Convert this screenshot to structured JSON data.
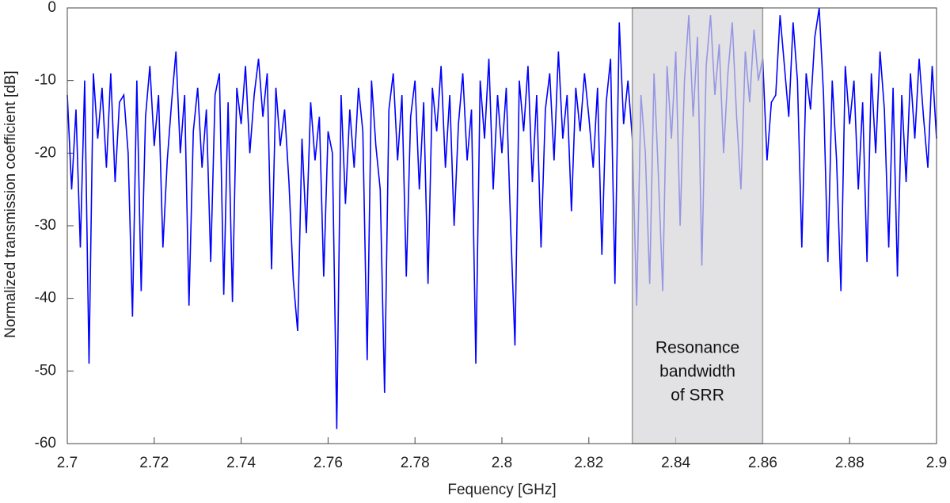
{
  "chart_data": {
    "type": "line",
    "xlabel": "Fequency [GHz]",
    "ylabel": "Normalized transmission coefficient [dB]",
    "annotation": [
      "Resonance",
      "bandwidth",
      "of SRR"
    ],
    "highlight": {
      "xmin": 2.83,
      "xmax": 2.86,
      "color": "#d6d6d9"
    },
    "xlim": [
      2.7,
      2.9
    ],
    "ylim": [
      -60,
      0
    ],
    "xticks": [
      2.7,
      2.72,
      2.74,
      2.76,
      2.78,
      2.8,
      2.82,
      2.84,
      2.86,
      2.88,
      2.9
    ],
    "yticks": [
      -60,
      -50,
      -40,
      -30,
      -20,
      -10,
      0
    ],
    "x": [
      2.7,
      2.701,
      2.702,
      2.703,
      2.704,
      2.705,
      2.706,
      2.707,
      2.708,
      2.709,
      2.71,
      2.711,
      2.712,
      2.713,
      2.714,
      2.715,
      2.716,
      2.717,
      2.718,
      2.719,
      2.72,
      2.721,
      2.722,
      2.723,
      2.724,
      2.725,
      2.726,
      2.727,
      2.728,
      2.729,
      2.73,
      2.731,
      2.732,
      2.733,
      2.734,
      2.735,
      2.736,
      2.737,
      2.738,
      2.739,
      2.74,
      2.741,
      2.742,
      2.743,
      2.744,
      2.745,
      2.746,
      2.747,
      2.748,
      2.749,
      2.75,
      2.751,
      2.752,
      2.753,
      2.754,
      2.755,
      2.756,
      2.757,
      2.758,
      2.759,
      2.76,
      2.761,
      2.762,
      2.763,
      2.764,
      2.765,
      2.766,
      2.767,
      2.768,
      2.769,
      2.77,
      2.771,
      2.772,
      2.773,
      2.774,
      2.775,
      2.776,
      2.777,
      2.778,
      2.779,
      2.78,
      2.781,
      2.782,
      2.783,
      2.784,
      2.785,
      2.786,
      2.787,
      2.788,
      2.789,
      2.79,
      2.791,
      2.792,
      2.793,
      2.794,
      2.795,
      2.796,
      2.797,
      2.798,
      2.799,
      2.8,
      2.801,
      2.802,
      2.803,
      2.804,
      2.805,
      2.806,
      2.807,
      2.808,
      2.809,
      2.81,
      2.811,
      2.812,
      2.813,
      2.814,
      2.815,
      2.816,
      2.817,
      2.818,
      2.819,
      2.82,
      2.821,
      2.822,
      2.823,
      2.824,
      2.825,
      2.826,
      2.827,
      2.828,
      2.829,
      2.83,
      2.831,
      2.832,
      2.833,
      2.834,
      2.835,
      2.836,
      2.837,
      2.838,
      2.839,
      2.84,
      2.841,
      2.842,
      2.843,
      2.844,
      2.845,
      2.846,
      2.847,
      2.848,
      2.849,
      2.85,
      2.851,
      2.852,
      2.853,
      2.854,
      2.855,
      2.856,
      2.857,
      2.858,
      2.859,
      2.86,
      2.861,
      2.862,
      2.863,
      2.864,
      2.865,
      2.866,
      2.867,
      2.868,
      2.869,
      2.87,
      2.871,
      2.872,
      2.873,
      2.874,
      2.875,
      2.876,
      2.877,
      2.878,
      2.879,
      2.88,
      2.881,
      2.882,
      2.883,
      2.884,
      2.885,
      2.886,
      2.887,
      2.888,
      2.889,
      2.89,
      2.891,
      2.892,
      2.893,
      2.894,
      2.895,
      2.896,
      2.897,
      2.898,
      2.899,
      2.9
    ],
    "series": [
      {
        "color": "#0000ff",
        "values": [
          -12,
          -25,
          -14,
          -33,
          -10,
          -49,
          -9,
          -18,
          -11,
          -22,
          -9,
          -24,
          -13,
          -12,
          -20,
          -42.5,
          -10,
          -39,
          -15,
          -8,
          -19,
          -12,
          -33,
          -21,
          -13,
          -6,
          -20,
          -12,
          -41,
          -17,
          -11,
          -22,
          -14,
          -35,
          -12,
          -9,
          -39.5,
          -13,
          -40.5,
          -11,
          -16,
          -8,
          -20,
          -12,
          -7,
          -15,
          -9,
          -36,
          -11,
          -19,
          -14,
          -24,
          -37.5,
          -44.5,
          -18,
          -31,
          -13,
          -21,
          -15,
          -37,
          -17,
          -20,
          -58,
          -12,
          -27,
          -14,
          -22,
          -11,
          -17,
          -48.5,
          -10,
          -19,
          -25,
          -53,
          -14,
          -9,
          -21,
          -12,
          -37,
          -15,
          -10,
          -25,
          -13,
          -38,
          -11,
          -17,
          -8,
          -22,
          -12,
          -30,
          -16,
          -9,
          -21,
          -14,
          -49,
          -10,
          -18,
          -7,
          -25,
          -12,
          -20,
          -11,
          -30,
          -46.5,
          -10,
          -17,
          -8,
          -24,
          -12,
          -33,
          -14,
          -9,
          -21,
          -6,
          -18,
          -12,
          -28,
          -11,
          -17,
          -9,
          -15,
          -22,
          -11,
          -34,
          -13,
          -7,
          -38,
          -2,
          -16,
          -10,
          -18,
          -41,
          -12,
          -20,
          -38,
          -9,
          -23,
          -39,
          -8,
          -18,
          -6,
          -30,
          -10,
          -1,
          -15,
          -4,
          -35.5,
          -8,
          -1,
          -12,
          -5,
          -20,
          -9,
          -2,
          -15,
          -25,
          -6,
          -13,
          -3,
          -10,
          -7,
          -21,
          -13,
          -12,
          -1,
          -8,
          -15,
          -2,
          -10,
          -33,
          -9,
          -14,
          -4,
          0,
          -12,
          -35,
          -10,
          -21,
          -39,
          -8,
          -16,
          -10,
          -25,
          -13,
          -35,
          -9,
          -20,
          -6,
          -14,
          -33,
          -11,
          -37,
          -12,
          -24,
          -9,
          -18,
          -7,
          -15,
          -22,
          -8,
          -18
        ]
      }
    ]
  }
}
